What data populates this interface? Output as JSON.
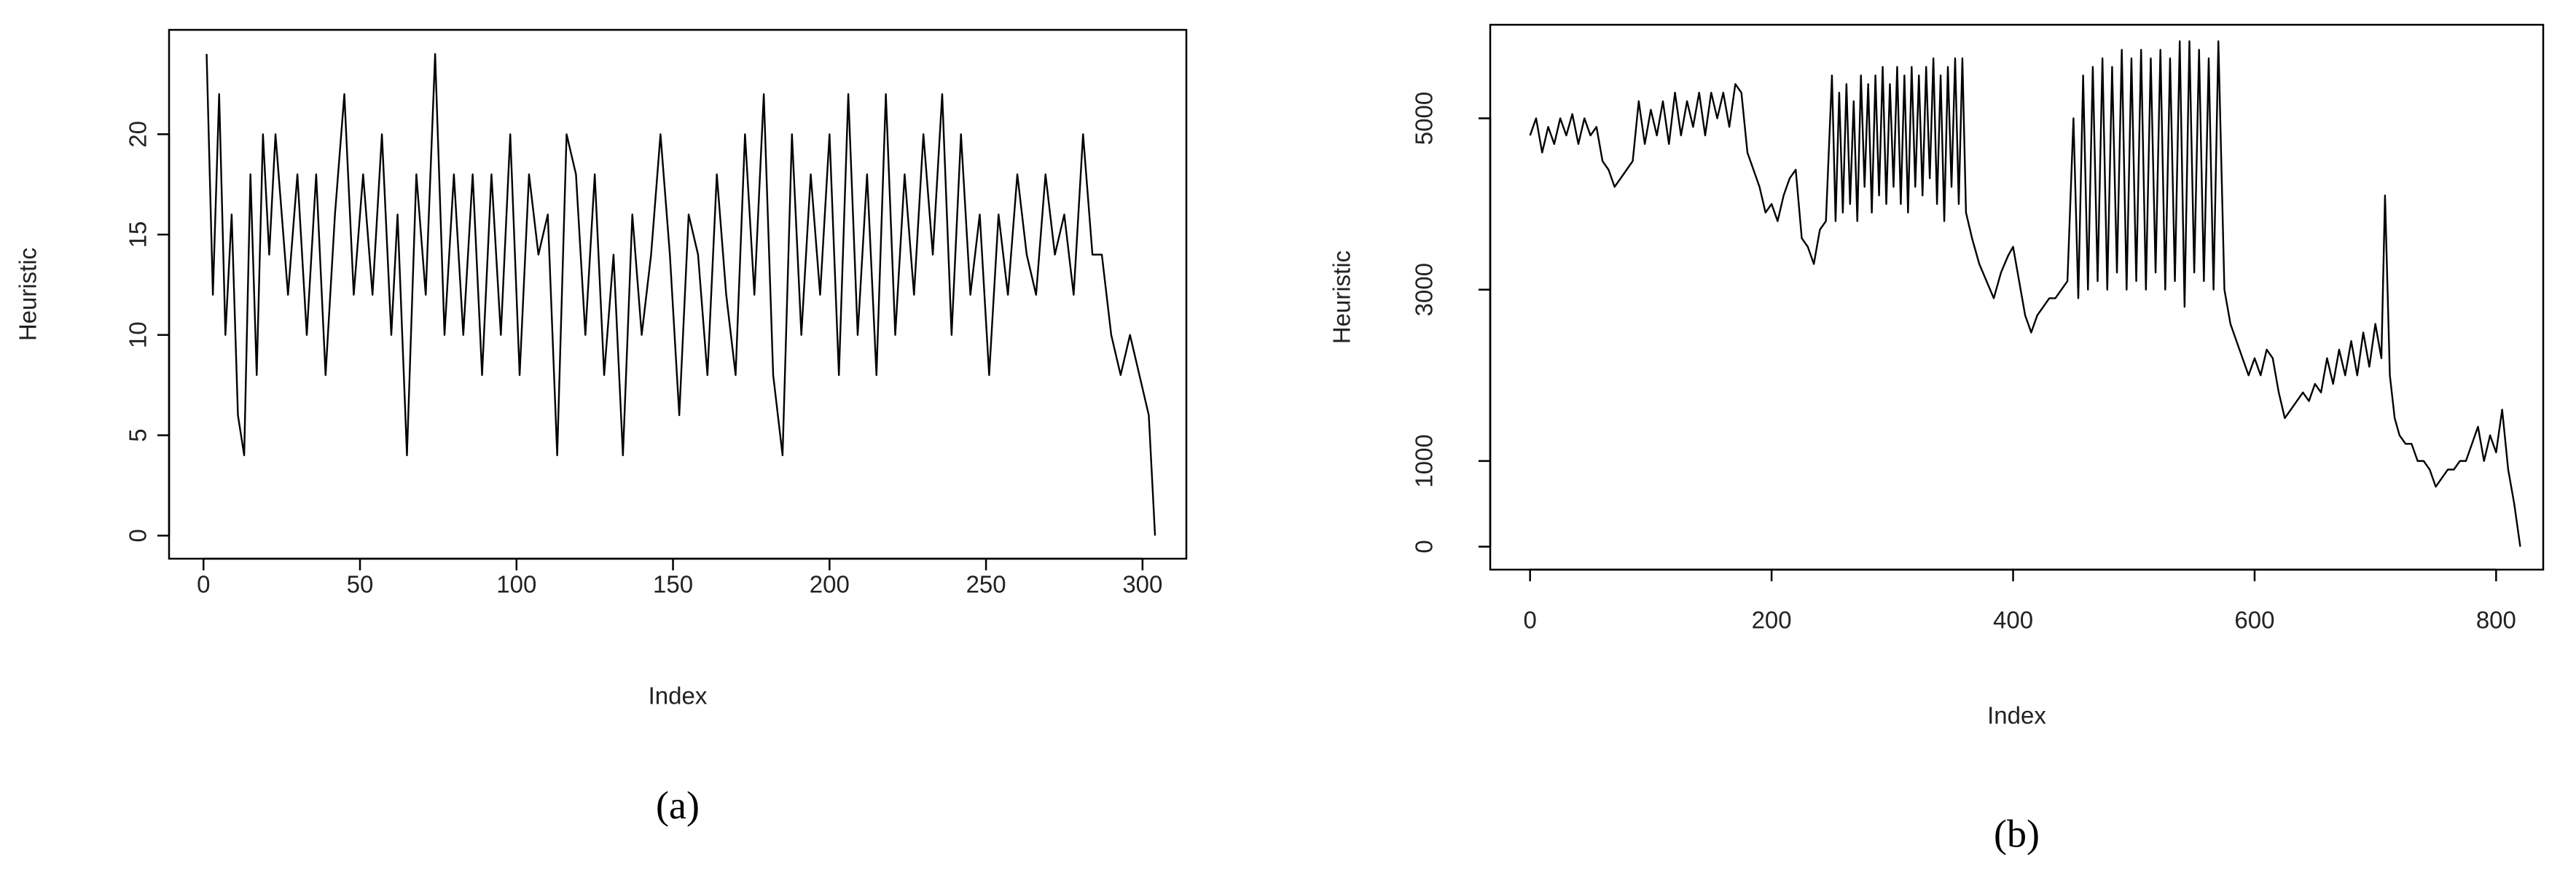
{
  "chart_data": [
    {
      "type": "line",
      "caption": "(a)",
      "xlabel": "Index",
      "ylabel": "Heuristic",
      "color": "#000000",
      "x": [
        1,
        3,
        5,
        7,
        9,
        11,
        13,
        15,
        17,
        19,
        21,
        23,
        25,
        27,
        30,
        33,
        36,
        39,
        42,
        45,
        48,
        51,
        54,
        57,
        60,
        62,
        65,
        68,
        71,
        74,
        77,
        80,
        83,
        86,
        89,
        92,
        95,
        98,
        101,
        104,
        107,
        110,
        113,
        116,
        119,
        122,
        125,
        128,
        131,
        134,
        137,
        140,
        143,
        146,
        149,
        152,
        155,
        158,
        161,
        164,
        167,
        170,
        173,
        176,
        179,
        182,
        185,
        188,
        191,
        194,
        197,
        200,
        203,
        206,
        209,
        212,
        215,
        218,
        221,
        224,
        227,
        230,
        233,
        236,
        239,
        242,
        245,
        248,
        251,
        254,
        257,
        260,
        263,
        266,
        269,
        272,
        275,
        278,
        281,
        284,
        287,
        290,
        293,
        296,
        299,
        302,
        304
      ],
      "values": [
        24,
        12,
        22,
        10,
        16,
        6,
        4,
        18,
        8,
        20,
        14,
        20,
        16,
        12,
        18,
        10,
        18,
        8,
        16,
        22,
        12,
        18,
        12,
        20,
        10,
        16,
        4,
        18,
        12,
        24,
        10,
        18,
        10,
        18,
        8,
        18,
        10,
        20,
        8,
        18,
        14,
        16,
        4,
        20,
        18,
        10,
        18,
        8,
        14,
        4,
        16,
        10,
        14,
        20,
        14,
        6,
        16,
        14,
        8,
        18,
        12,
        8,
        20,
        12,
        22,
        8,
        4,
        20,
        10,
        18,
        12,
        20,
        8,
        22,
        10,
        18,
        8,
        22,
        10,
        18,
        12,
        20,
        14,
        22,
        10,
        20,
        12,
        16,
        8,
        16,
        12,
        18,
        14,
        12,
        18,
        14,
        16,
        12,
        20,
        14,
        14,
        10,
        8,
        10,
        8,
        6,
        0
      ],
      "xlim": [
        -11,
        314
      ],
      "ylim": [
        -1.15,
        25.2
      ],
      "xticks": [
        0,
        50,
        100,
        150,
        200,
        250,
        300
      ],
      "yticks": [
        0,
        5,
        10,
        15,
        20
      ]
    },
    {
      "type": "line",
      "caption": "(b)",
      "xlabel": "Index",
      "ylabel": "Heuristic",
      "color": "#000000",
      "x": [
        0,
        5,
        10,
        15,
        20,
        25,
        30,
        35,
        40,
        45,
        50,
        55,
        60,
        65,
        70,
        75,
        80,
        85,
        90,
        95,
        100,
        105,
        110,
        115,
        120,
        125,
        130,
        135,
        140,
        145,
        150,
        155,
        160,
        165,
        170,
        175,
        180,
        185,
        190,
        195,
        200,
        205,
        210,
        215,
        220,
        225,
        230,
        235,
        240,
        245,
        250,
        253,
        256,
        259,
        262,
        265,
        268,
        271,
        274,
        277,
        280,
        283,
        286,
        289,
        292,
        295,
        298,
        301,
        304,
        307,
        310,
        313,
        316,
        319,
        322,
        325,
        328,
        331,
        334,
        337,
        340,
        343,
        346,
        349,
        352,
        355,
        358,
        361,
        366,
        372,
        378,
        384,
        390,
        396,
        400,
        405,
        410,
        415,
        420,
        425,
        430,
        435,
        440,
        445,
        450,
        454,
        458,
        462,
        466,
        470,
        474,
        478,
        482,
        486,
        490,
        494,
        498,
        502,
        506,
        510,
        514,
        518,
        522,
        526,
        530,
        534,
        538,
        542,
        546,
        550,
        554,
        558,
        562,
        566,
        570,
        575,
        580,
        585,
        590,
        595,
        600,
        605,
        610,
        615,
        620,
        625,
        630,
        635,
        640,
        645,
        650,
        655,
        660,
        665,
        670,
        675,
        680,
        685,
        690,
        695,
        700,
        705,
        708,
        712,
        716,
        720,
        725,
        730,
        735,
        740,
        745,
        750,
        755,
        760,
        765,
        770,
        775,
        780,
        785,
        790,
        795,
        800,
        805,
        810,
        815,
        820
      ],
      "values": [
        4800,
        5000,
        4600,
        4900,
        4700,
        5000,
        4800,
        5050,
        4700,
        5000,
        4800,
        4900,
        4500,
        4400,
        4200,
        4300,
        4400,
        4500,
        5200,
        4700,
        5100,
        4800,
        5200,
        4700,
        5300,
        4800,
        5200,
        4900,
        5300,
        4800,
        5300,
        5000,
        5300,
        4900,
        5400,
        5300,
        4600,
        4400,
        4200,
        3900,
        4000,
        3800,
        4100,
        4300,
        4400,
        3600,
        3500,
        3300,
        3700,
        3800,
        5500,
        3800,
        5300,
        3900,
        5400,
        4000,
        5200,
        3800,
        5500,
        4200,
        5400,
        3900,
        5500,
        4100,
        5600,
        4000,
        5400,
        4200,
        5600,
        4000,
        5500,
        3900,
        5600,
        4200,
        5500,
        4100,
        5600,
        4300,
        5700,
        4000,
        5500,
        3800,
        5600,
        4200,
        5700,
        4000,
        5700,
        3900,
        3600,
        3300,
        3100,
        2900,
        3200,
        3400,
        3500,
        3100,
        2700,
        2500,
        2700,
        2800,
        2900,
        2900,
        3000,
        3100,
        5000,
        2900,
        5500,
        3000,
        5600,
        3100,
        5700,
        3000,
        5600,
        3200,
        5800,
        3000,
        5700,
        3100,
        5800,
        3000,
        5700,
        3200,
        5800,
        3000,
        5700,
        3100,
        5900,
        2800,
        5900,
        3200,
        5800,
        3100,
        5700,
        3000,
        5900,
        3000,
        2600,
        2400,
        2200,
        2000,
        2200,
        2000,
        2300,
        2200,
        1800,
        1500,
        1600,
        1700,
        1800,
        1700,
        1900,
        1800,
        2200,
        1900,
        2300,
        2000,
        2400,
        2000,
        2500,
        2100,
        2600,
        2200,
        4100,
        2000,
        1500,
        1300,
        1200,
        1200,
        1000,
        1000,
        900,
        700,
        800,
        900,
        900,
        1000,
        1000,
        1200,
        1400,
        1000,
        1300,
        1100,
        1600,
        900,
        500,
        0
      ],
      "xlim": [
        -33,
        839
      ],
      "ylim": [
        -268,
        6092
      ],
      "xticks": [
        0,
        200,
        400,
        600,
        800
      ],
      "yticks": [
        0,
        1000,
        3000,
        5000
      ]
    }
  ]
}
